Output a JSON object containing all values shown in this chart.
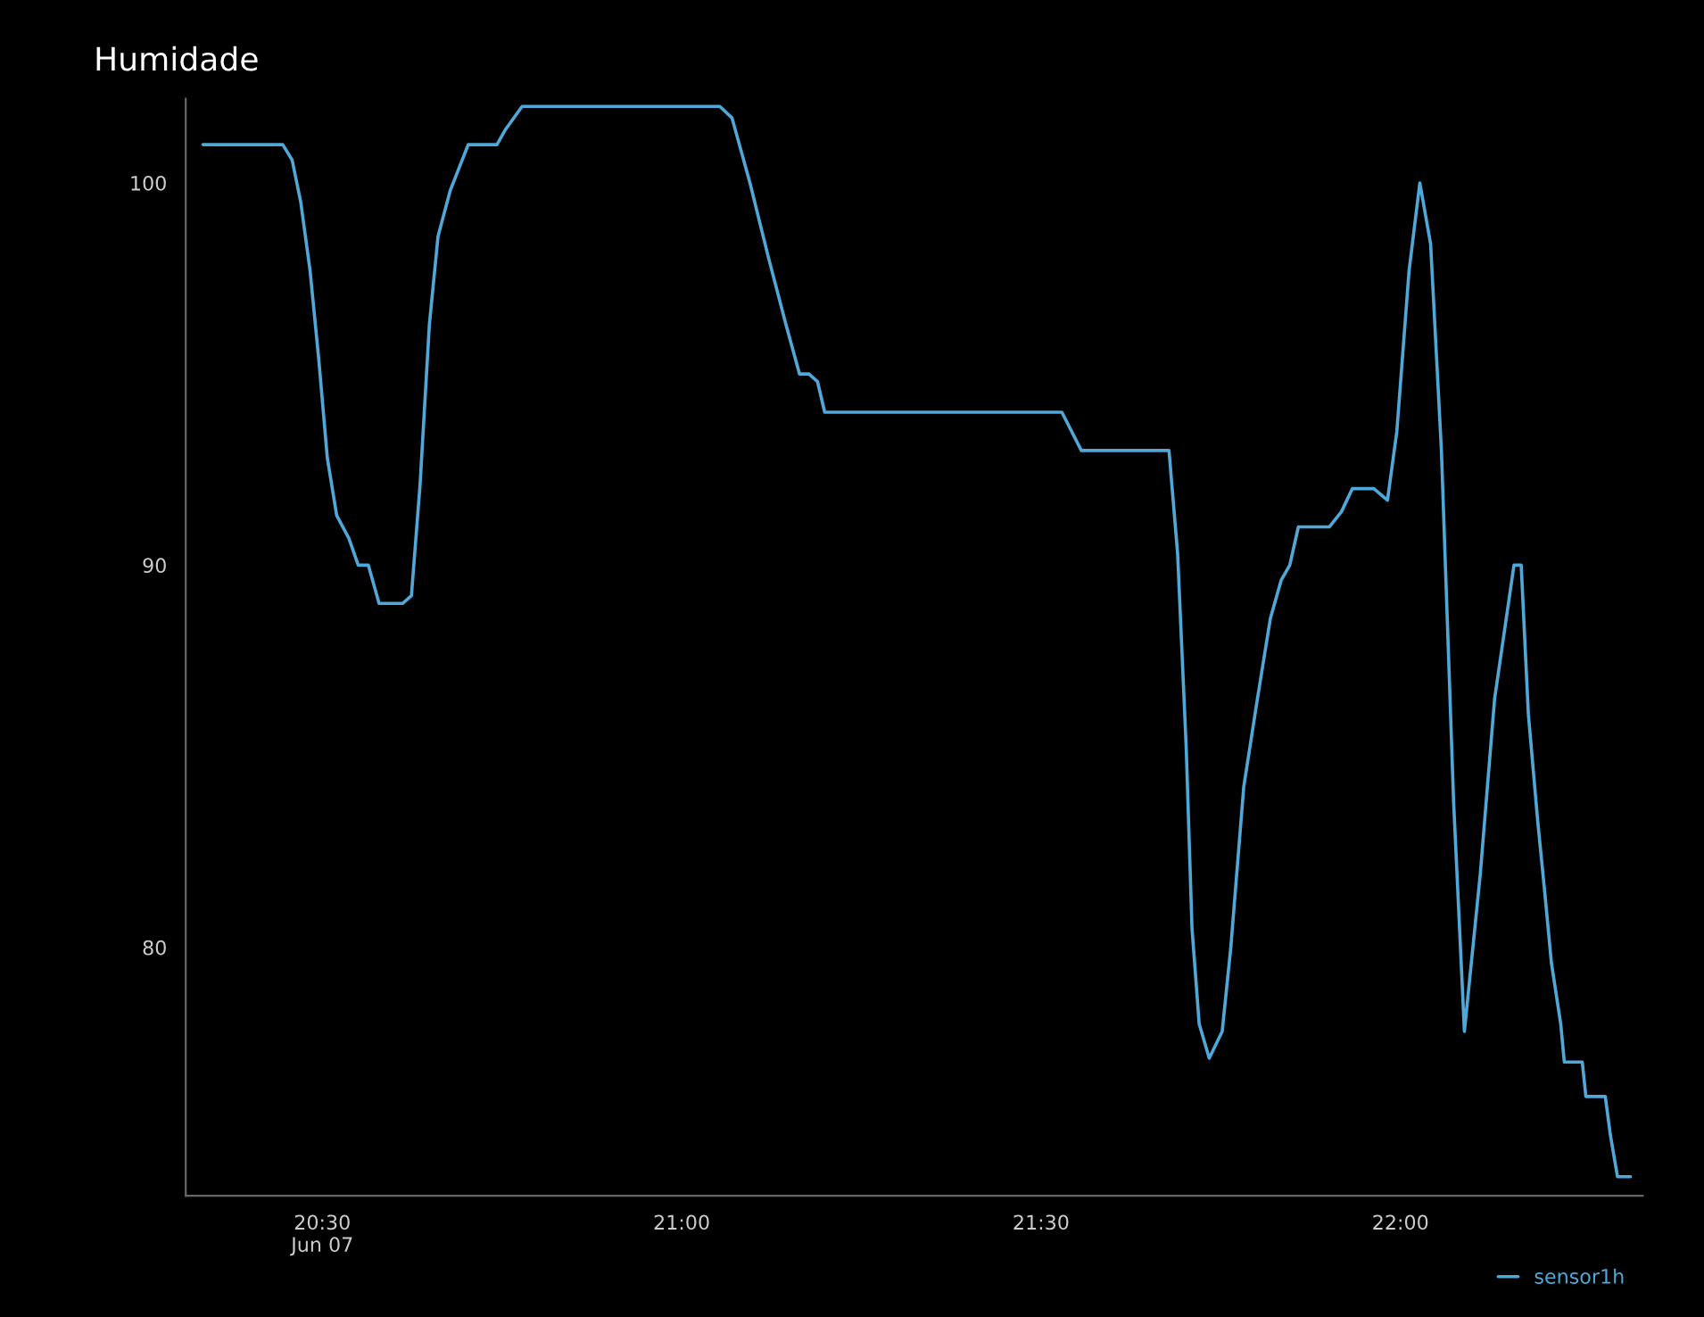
{
  "chart_data": {
    "type": "line",
    "title": "Humidade",
    "xlim": [
      20.31,
      22.337
    ],
    "ylim": [
      73.5,
      102.2
    ],
    "xticks": [
      {
        "value": 20.5,
        "label": "20:30\nJun 07"
      },
      {
        "value": 21.0,
        "label": "21:00"
      },
      {
        "value": 21.5,
        "label": "21:30"
      },
      {
        "value": 22.0,
        "label": "22:00"
      }
    ],
    "yticks": [
      80,
      90,
      100
    ],
    "grid": false,
    "legend": "bottom right",
    "marker": "none",
    "line_style": "solid",
    "series": [
      {
        "name": "sensor1h",
        "color": "#4fa8d8",
        "x": [
          20.334,
          20.445,
          20.458,
          20.47,
          20.483,
          20.495,
          20.507,
          20.52,
          20.537,
          20.55,
          20.564,
          20.579,
          20.612,
          20.624,
          20.636,
          20.649,
          20.661,
          20.678,
          20.703,
          20.743,
          20.755,
          20.778,
          21.053,
          21.07,
          21.095,
          21.12,
          21.145,
          21.164,
          21.177,
          21.189,
          21.199,
          21.529,
          21.556,
          21.678,
          21.69,
          21.702,
          21.71,
          21.72,
          21.734,
          21.752,
          21.764,
          21.782,
          21.801,
          21.819,
          21.834,
          21.846,
          21.858,
          21.901,
          21.918,
          21.933,
          21.963,
          21.982,
          21.995,
          22.012,
          22.027,
          22.042,
          22.057,
          22.074,
          22.089,
          22.111,
          22.131,
          22.158,
          22.168,
          22.178,
          22.191,
          22.201,
          22.21,
          22.223,
          22.228,
          22.253,
          22.258,
          22.285,
          22.292,
          22.302,
          22.32
        ],
        "values": [
          101,
          101,
          100.6,
          99.5,
          97.7,
          95.4,
          92.8,
          91.3,
          90.7,
          90,
          90,
          89,
          89,
          89.2,
          92.1,
          96.3,
          98.6,
          99.8,
          101,
          101,
          101.4,
          102,
          102,
          101.7,
          100,
          98.1,
          96.3,
          95,
          95,
          94.8,
          94,
          94,
          93,
          93,
          90.3,
          85.2,
          80.5,
          78,
          77.1,
          77.8,
          80,
          84.2,
          86.5,
          88.6,
          89.6,
          90,
          91,
          91,
          91.4,
          92,
          92,
          91.7,
          93.5,
          97.7,
          100,
          98.4,
          93,
          83.8,
          77.8,
          81.9,
          86.5,
          90,
          90,
          86.1,
          83.3,
          81.4,
          79.6,
          78,
          77,
          77,
          76.1,
          76.1,
          75.1,
          74,
          74
        ]
      }
    ]
  }
}
